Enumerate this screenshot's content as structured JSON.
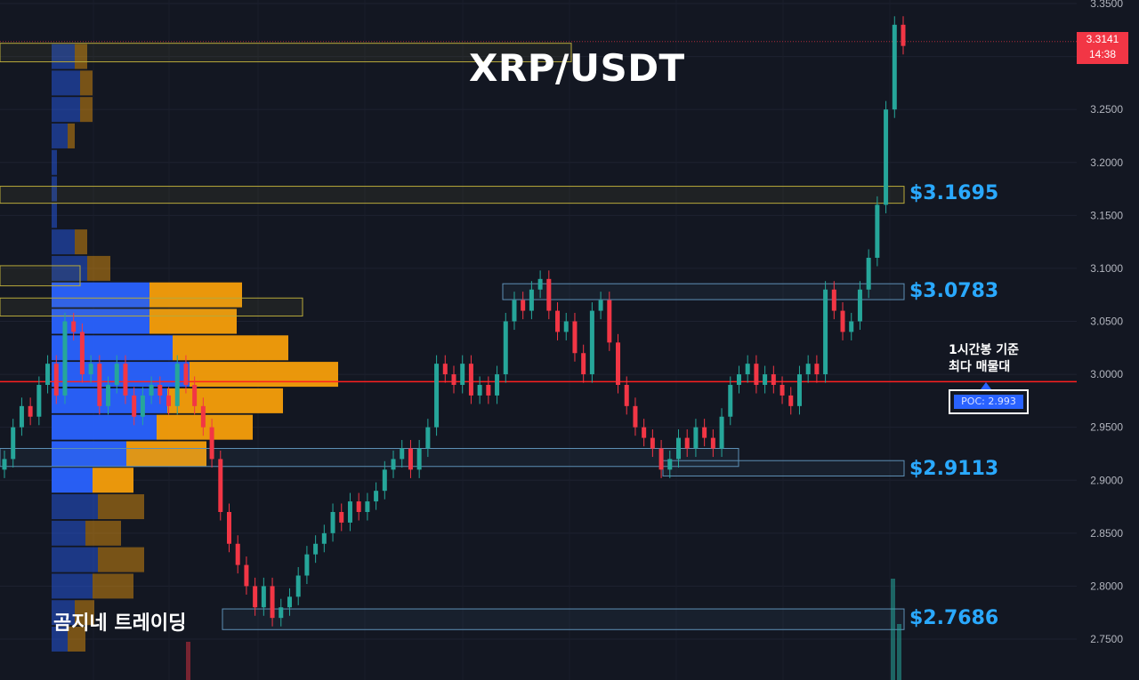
{
  "header": {
    "title": "XRP/USDT"
  },
  "watermark": "곰지네 트레이딩",
  "poc_annotation": {
    "line1": "1시간봉 기준",
    "line2": "최다 매물대",
    "label": "POC: 2.993",
    "value": 2.993
  },
  "current_price": {
    "price": "3.3141",
    "countdown": "14:38"
  },
  "level_labels": [
    "$3.1695",
    "$3.0783",
    "$2.9113",
    "$2.7686"
  ],
  "colors": {
    "background": "#131722",
    "up": "#26a69a",
    "down": "#f23645",
    "poc_line": "#ff2020",
    "level_text": "#2aa9ff",
    "vp_up": "#2962ff",
    "vp_down": "#f59e0b",
    "zone": "#b8a93a",
    "zone_blue": "#5d8fb5"
  },
  "chart_data": {
    "type": "candlestick",
    "title": "XRP/USDT",
    "y_axis": {
      "side": "right",
      "ylim": [
        2.725,
        3.35
      ],
      "ticks": [
        "3.3500",
        "3.3000",
        "3.2500",
        "3.2000",
        "3.1500",
        "3.1000",
        "3.0500",
        "3.0000",
        "2.9500",
        "2.9000",
        "2.8500",
        "2.8000",
        "2.7500"
      ]
    },
    "timeframe": "1h",
    "candles_close": [
      2.92,
      2.95,
      2.97,
      2.96,
      2.99,
      3.01,
      2.98,
      3.05,
      3.04,
      3.0,
      3.01,
      2.97,
      2.99,
      3.01,
      2.98,
      2.96,
      2.98,
      2.99,
      2.98,
      2.97,
      3.01,
      2.99,
      2.97,
      2.95,
      2.92,
      2.87,
      2.84,
      2.82,
      2.8,
      2.78,
      2.8,
      2.77,
      2.78,
      2.79,
      2.81,
      2.83,
      2.84,
      2.85,
      2.87,
      2.86,
      2.88,
      2.87,
      2.88,
      2.89,
      2.91,
      2.92,
      2.93,
      2.91,
      2.93,
      2.95,
      3.01,
      3.0,
      2.99,
      3.01,
      2.98,
      2.99,
      2.98,
      3.0,
      3.05,
      3.07,
      3.06,
      3.08,
      3.09,
      3.06,
      3.04,
      3.05,
      3.02,
      3.0,
      3.06,
      3.07,
      3.03,
      2.99,
      2.97,
      2.95,
      2.94,
      2.93,
      2.91,
      2.92,
      2.94,
      2.93,
      2.95,
      2.94,
      2.93,
      2.96,
      2.99,
      3.0,
      3.01,
      2.99,
      3.0,
      2.99,
      2.98,
      2.97,
      3.0,
      3.01,
      3.0,
      3.08,
      3.06,
      3.04,
      3.05,
      3.08,
      3.11,
      3.16,
      3.25,
      3.33,
      3.31
    ],
    "volume_profile": [
      {
        "price": 3.3,
        "up": 26,
        "down": 14
      },
      {
        "price": 3.275,
        "up": 32,
        "down": 14
      },
      {
        "price": 3.25,
        "up": 32,
        "down": 14
      },
      {
        "price": 3.225,
        "up": 18,
        "down": 8
      },
      {
        "price": 3.2,
        "up": 6,
        "down": 0
      },
      {
        "price": 3.175,
        "up": 6,
        "down": 0
      },
      {
        "price": 3.15,
        "up": 6,
        "down": 0
      },
      {
        "price": 3.125,
        "up": 26,
        "down": 14
      },
      {
        "price": 3.1,
        "up": 40,
        "down": 26
      },
      {
        "price": 3.075,
        "up": 110,
        "down": 104
      },
      {
        "price": 3.05,
        "up": 110,
        "down": 98
      },
      {
        "price": 3.025,
        "up": 136,
        "down": 130
      },
      {
        "price": 3.0,
        "up": 155,
        "down": 167
      },
      {
        "price": 2.975,
        "up": 130,
        "down": 130
      },
      {
        "price": 2.95,
        "up": 118,
        "down": 108
      },
      {
        "price": 2.925,
        "up": 84,
        "down": 90
      },
      {
        "price": 2.9,
        "up": 46,
        "down": 46
      },
      {
        "price": 2.875,
        "up": 52,
        "down": 52
      },
      {
        "price": 2.85,
        "up": 38,
        "down": 40
      },
      {
        "price": 2.825,
        "up": 52,
        "down": 52
      },
      {
        "price": 2.8,
        "up": 46,
        "down": 46
      },
      {
        "price": 2.775,
        "up": 26,
        "down": 22
      },
      {
        "price": 2.75,
        "up": 18,
        "down": 20
      }
    ],
    "levels": [
      3.1695,
      3.0783,
      2.9113,
      2.7686
    ],
    "poc": 2.993,
    "last_price": 3.3141
  }
}
